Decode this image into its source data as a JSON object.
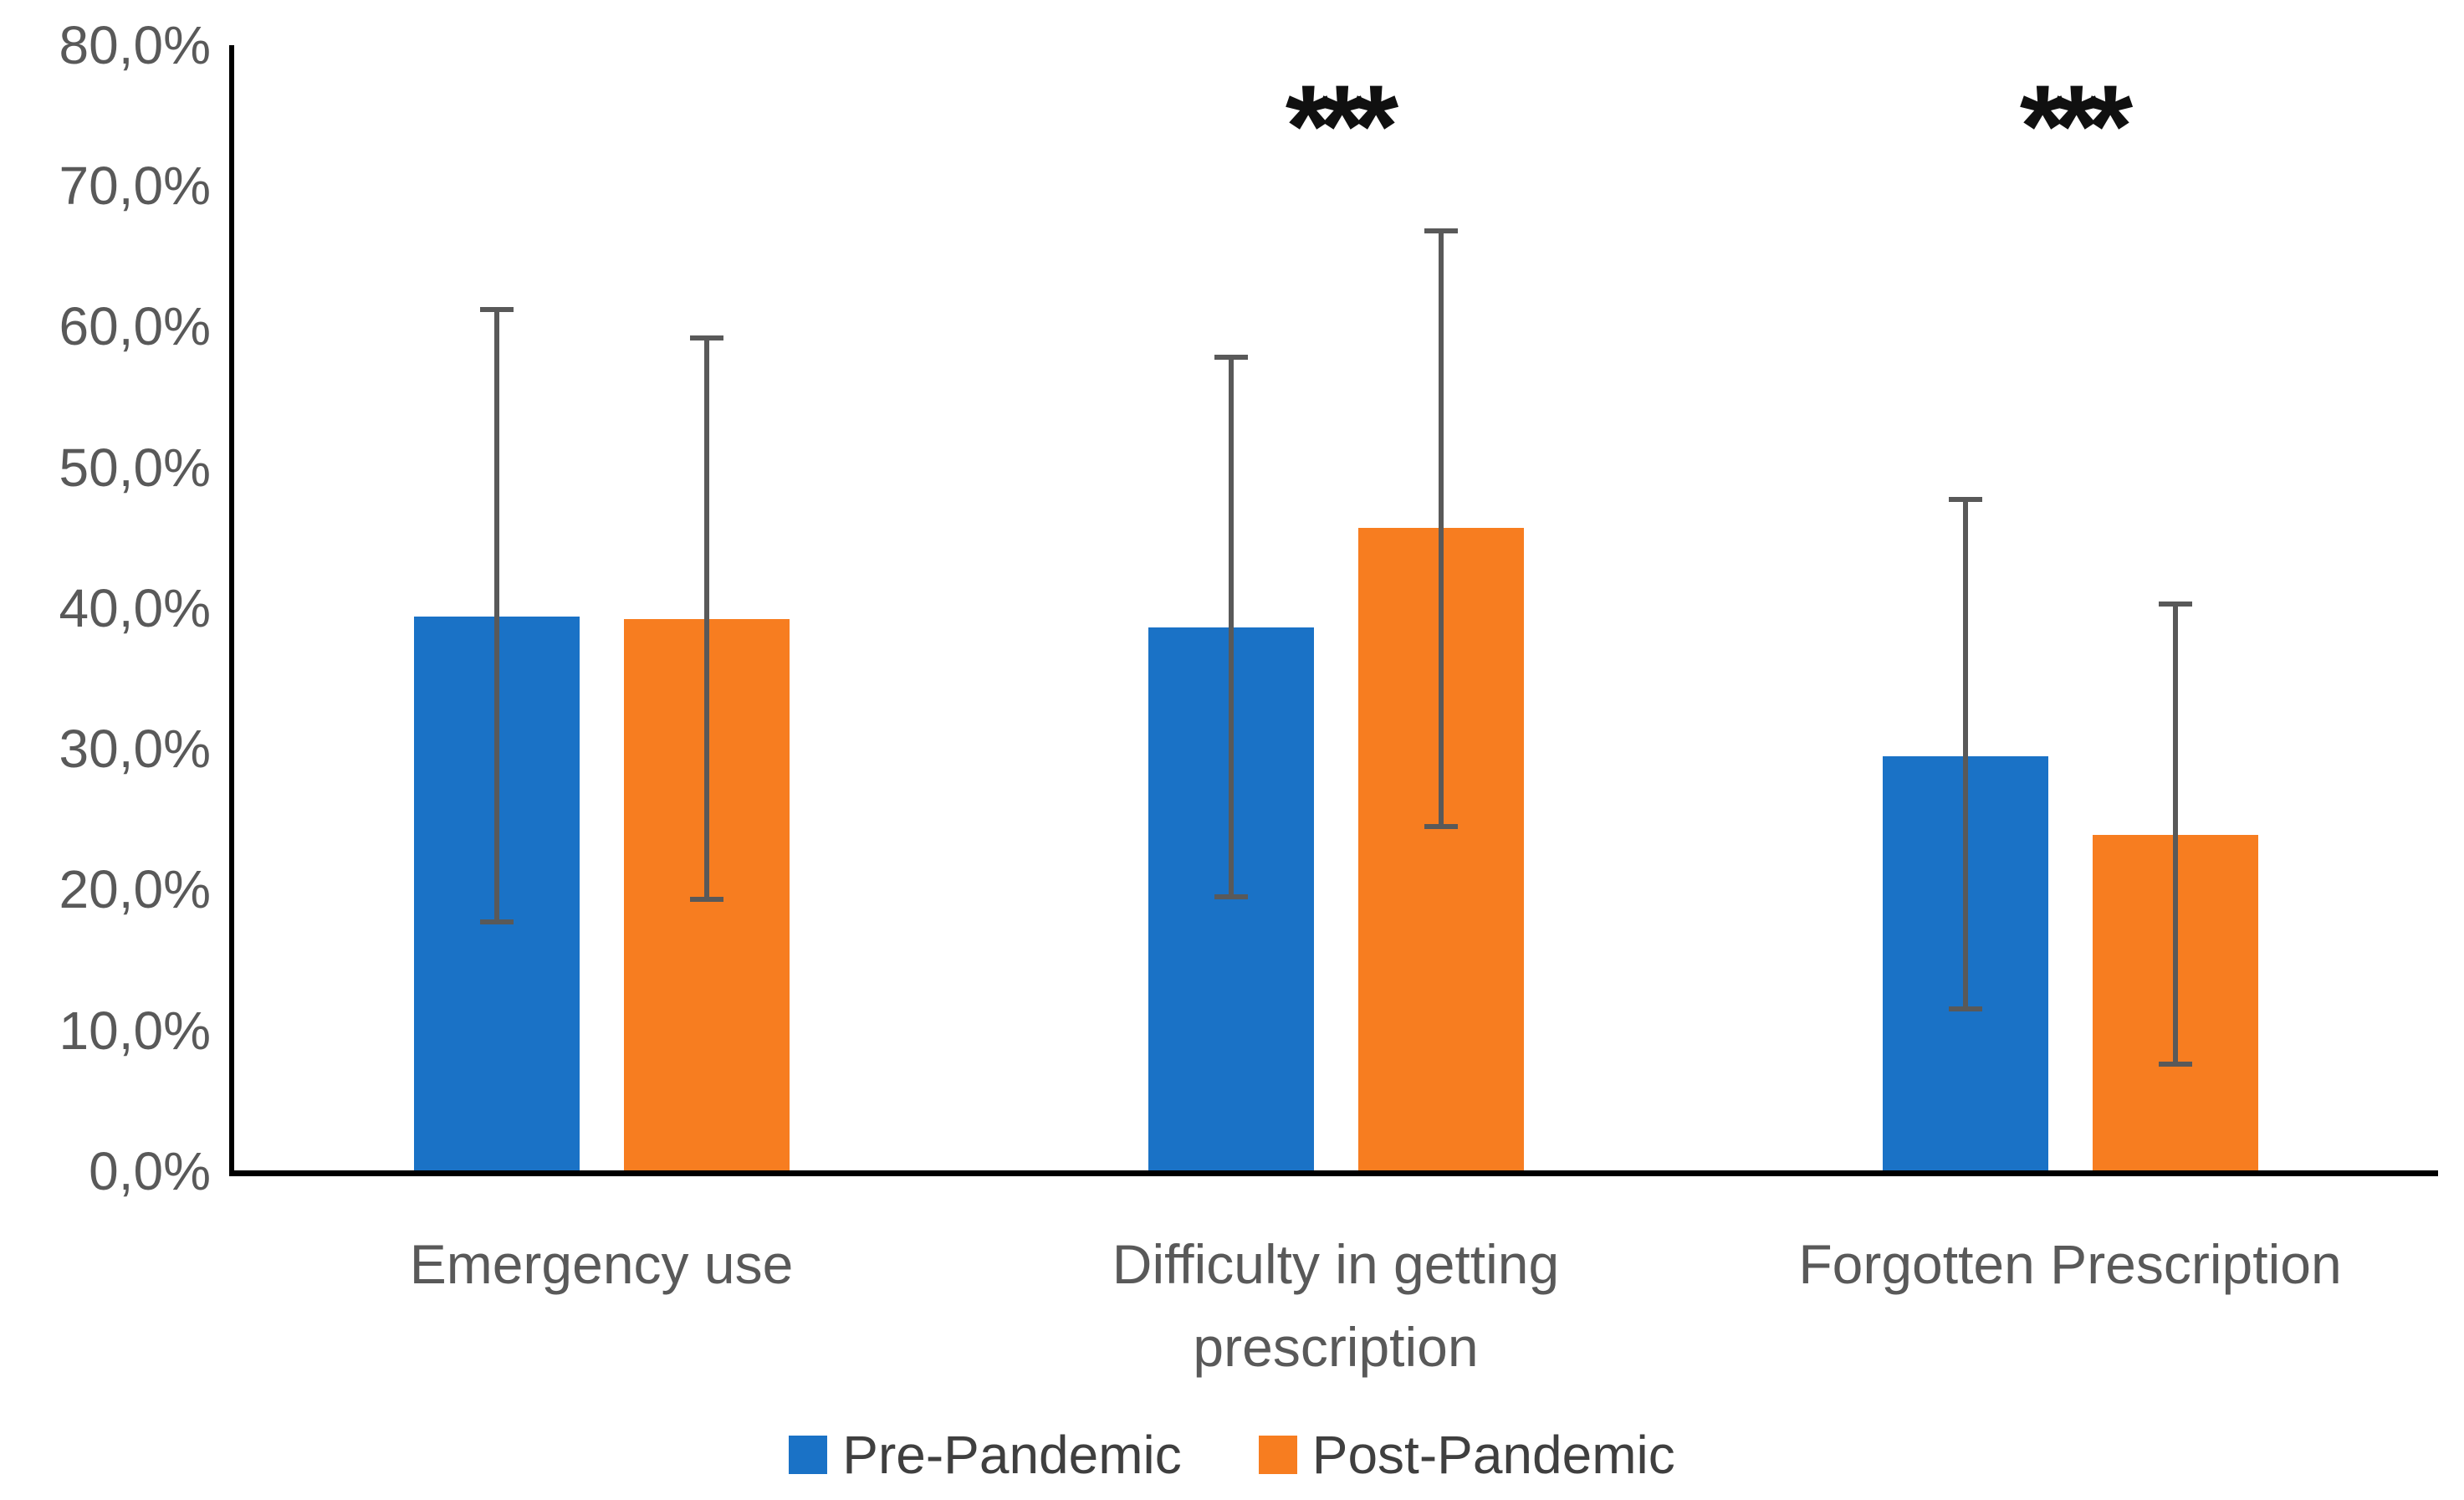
{
  "chart_data": {
    "type": "bar",
    "title": "",
    "categories": [
      "Emergency use",
      "Difficulty in getting prescription",
      "Forgotten Prescription"
    ],
    "series": [
      {
        "name": "Pre-Pandemic",
        "color": "#1A72C6",
        "values": [
          39.4,
          38.6,
          29.5
        ],
        "error_low": [
          17.7,
          19.5,
          11.5
        ],
        "error_high": [
          61.2,
          57.8,
          47.7
        ]
      },
      {
        "name": "Post-Pandemic",
        "color": "#F77D20",
        "values": [
          39.2,
          45.7,
          23.9
        ],
        "error_low": [
          19.3,
          24.5,
          7.6
        ],
        "error_high": [
          59.2,
          66.8,
          40.3
        ]
      }
    ],
    "y_axis": {
      "min": 0,
      "max": 80,
      "tick_step": 10,
      "tick_values": [
        0,
        10,
        20,
        30,
        40,
        50,
        60,
        70,
        80
      ],
      "tick_labels": [
        "0,0%",
        "10,0%",
        "20,0%",
        "30,0%",
        "40,0%",
        "50,0%",
        "60,0%",
        "70,0%",
        "80,0%"
      ]
    },
    "significance_markers": [
      {
        "category_index": 1,
        "label": "***"
      },
      {
        "category_index": 2,
        "label": "***"
      }
    ],
    "error_bar_color": "#595959",
    "axis_color": "#000000",
    "tick_label_color": "#595959",
    "legend_position": "bottom",
    "grid": false
  }
}
